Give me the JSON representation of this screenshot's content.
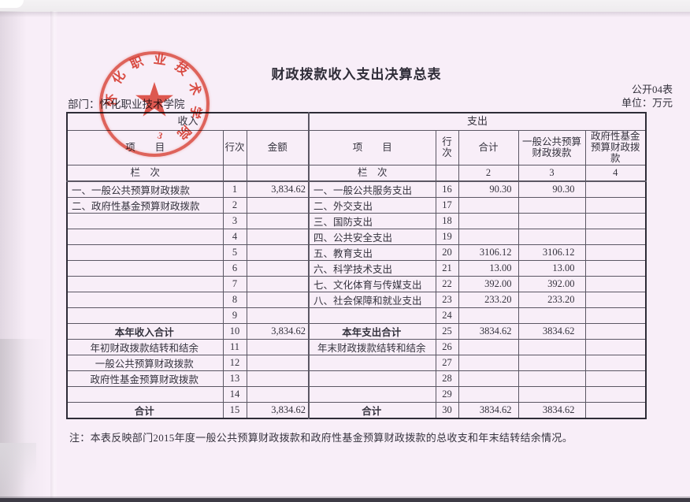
{
  "page": {
    "title": "财政拨款收入支出决算总表",
    "table_code": "公开04表",
    "unit_label": "单位：万元",
    "department_label": "部门：怀化职业技术学院",
    "note": "注：本表反映部门2015年度一般公共预算财政拨款和政府性基金预算财政拨款的总收支和年末结转结余情况。"
  },
  "colors": {
    "page_pink": "#f8eef8",
    "stamp_red": "#dc3a2b",
    "border_dark": "#2e2c37"
  },
  "stamp": {
    "org_text": "怀化职业技术学院",
    "chars": [
      "怀",
      "化",
      "职",
      "业",
      "技",
      "术",
      "学",
      "院"
    ],
    "bottom_mark": "3"
  },
  "table": {
    "headers": {
      "income": "收入",
      "expense": "支出",
      "item_left": "项　　目",
      "line_left": "行次",
      "amount": "金额",
      "item_right": "项　　目",
      "line_right": "行次",
      "total": "合计",
      "general_budget": "一般公共预算财政拨款",
      "gov_fund": "政府性基金预算财政拨款",
      "lanci_left": "栏　次",
      "lanci_right": "栏　次",
      "col2": "2",
      "col3": "3",
      "col4": "4"
    },
    "rows": [
      [
        {
          "t": "一、一般公共预算财政拨款"
        },
        {
          "t": "1"
        },
        {
          "t": "3,834.62"
        },
        {
          "t": "一、一般公共服务支出"
        },
        {
          "t": "16"
        },
        {
          "t": "90.30"
        },
        {
          "t": "90.30"
        },
        {}
      ],
      [
        {
          "t": "二、政府性基金预算财政拨款"
        },
        {
          "t": "2"
        },
        {},
        {
          "t": "二、外交支出"
        },
        {
          "t": "17"
        },
        {},
        {},
        {}
      ],
      [
        {},
        {
          "t": "3"
        },
        {},
        {
          "t": "三、国防支出"
        },
        {
          "t": "18"
        },
        {},
        {},
        {}
      ],
      [
        {},
        {
          "t": "4"
        },
        {},
        {
          "t": "四、公共安全支出"
        },
        {
          "t": "19"
        },
        {},
        {},
        {}
      ],
      [
        {},
        {
          "t": "5"
        },
        {},
        {
          "t": "五、教育支出"
        },
        {
          "t": "20"
        },
        {
          "t": "3106.12"
        },
        {
          "t": "3106.12"
        },
        {}
      ],
      [
        {},
        {
          "t": "6"
        },
        {},
        {
          "t": "六、科学技术支出"
        },
        {
          "t": "21"
        },
        {
          "t": "13.00"
        },
        {
          "t": "13.00"
        },
        {}
      ],
      [
        {},
        {
          "t": "7"
        },
        {},
        {
          "t": "七、文化体育与传媒支出"
        },
        {
          "t": "22"
        },
        {
          "t": "392.00"
        },
        {
          "t": "392.00"
        },
        {}
      ],
      [
        {},
        {
          "t": "8"
        },
        {},
        {
          "t": "八、社会保障和就业支出"
        },
        {
          "t": "23"
        },
        {
          "t": "233.20"
        },
        {
          "t": "233.20"
        },
        {}
      ],
      [
        {},
        {
          "t": "9"
        },
        {},
        {},
        {
          "t": "24"
        },
        {},
        {},
        {}
      ],
      [
        {
          "t": "本年收入合计",
          "c": 1,
          "b": 1
        },
        {
          "t": "10"
        },
        {
          "t": "3,834.62"
        },
        {
          "t": "本年支出合计",
          "c": 1,
          "b": 1
        },
        {
          "t": "25"
        },
        {
          "t": "3834.62"
        },
        {
          "t": "3834.62"
        },
        {}
      ],
      [
        {
          "t": "年初财政拨款结转和结余",
          "c": 1
        },
        {
          "t": "11"
        },
        {},
        {
          "t": "年末财政拨款结转和结余",
          "c": 1
        },
        {
          "t": "26"
        },
        {},
        {},
        {}
      ],
      [
        {
          "t": "一般公共预算财政拨款",
          "c": 1
        },
        {
          "t": "12"
        },
        {},
        {},
        {
          "t": "27"
        },
        {},
        {},
        {}
      ],
      [
        {
          "t": "政府性基金预算财政拨款",
          "c": 1
        },
        {
          "t": "13"
        },
        {},
        {},
        {
          "t": "28"
        },
        {},
        {},
        {}
      ],
      [
        {},
        {
          "t": "14"
        },
        {},
        {},
        {
          "t": "29"
        },
        {},
        {},
        {}
      ],
      [
        {
          "t": "合计",
          "c": 1,
          "b": 1
        },
        {
          "t": "15"
        },
        {
          "t": "3,834.62"
        },
        {
          "t": "合计",
          "c": 1,
          "b": 1
        },
        {
          "t": "30"
        },
        {
          "t": "3834.62"
        },
        {
          "t": "3834.62"
        },
        {}
      ]
    ]
  }
}
